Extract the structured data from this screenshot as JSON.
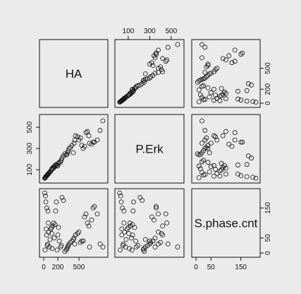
{
  "chart_data": {
    "type": "scatter",
    "variables": [
      "HA",
      "P.Erk",
      "S.phase.cnt"
    ],
    "ranges": {
      "HA": [
        0,
        850
      ],
      "P.Erk": [
        15,
        580
      ],
      "S.phase.cnt": [
        0,
        200
      ]
    },
    "ticks": {
      "HA": [
        0,
        200,
        500
      ],
      "P.Erk": [
        100,
        300,
        500
      ],
      "S.phase.cnt": [
        0,
        50,
        150
      ]
    },
    "tick_labels": {
      "HA": [
        "0",
        "200",
        "500"
      ],
      "P.Erk": [
        "100",
        "300",
        "500"
      ],
      "S.phase.cnt": [
        "0",
        "50",
        "150"
      ]
    },
    "y_tick_labels_left": {
      "P.Erk": [
        "100",
        "300",
        "500"
      ]
    },
    "y_tick_labels_right": {
      "HA": [
        "0",
        "200",
        "500"
      ],
      "S.phase.cnt": [
        "0",
        "50",
        "150"
      ]
    },
    "grid": false,
    "observations": {
      "HA": [
        20,
        25,
        30,
        40,
        45,
        55,
        60,
        70,
        80,
        100,
        110,
        120,
        130,
        140,
        150,
        160,
        170,
        180,
        190,
        200,
        210,
        220,
        240,
        250,
        260,
        280,
        300,
        320,
        330,
        340,
        350,
        360,
        380,
        400,
        420,
        430,
        440,
        450,
        480,
        500,
        520,
        540,
        560,
        580,
        600,
        620,
        640,
        650,
        680,
        700,
        720,
        760,
        800,
        840,
        15,
        35,
        50,
        65,
        90,
        115
      ],
      "P.Erk": [
        25,
        30,
        35,
        40,
        45,
        55,
        60,
        65,
        75,
        90,
        100,
        110,
        120,
        115,
        130,
        140,
        145,
        150,
        135,
        140,
        160,
        170,
        175,
        190,
        210,
        230,
        250,
        240,
        245,
        260,
        280,
        300,
        310,
        330,
        260,
        350,
        380,
        420,
        410,
        380,
        400,
        330,
        300,
        320,
        450,
        460,
        420,
        350,
        340,
        360,
        360,
        380,
        470,
        560,
        20,
        40,
        50,
        60,
        80,
        105
      ],
      "S.phase.cnt": [
        10,
        190,
        170,
        60,
        150,
        30,
        140,
        70,
        20,
        80,
        85,
        15,
        90,
        100,
        50,
        95,
        140,
        170,
        10,
        60,
        85,
        40,
        20,
        25,
        185,
        175,
        5,
        10,
        15,
        20,
        25,
        30,
        35,
        40,
        45,
        50,
        30,
        60,
        65,
        70,
        35,
        40,
        40,
        120,
        130,
        100,
        90,
        20,
        110,
        150,
        155,
        130,
        30,
        20,
        200,
        80,
        25,
        100,
        45,
        65
      ]
    }
  }
}
